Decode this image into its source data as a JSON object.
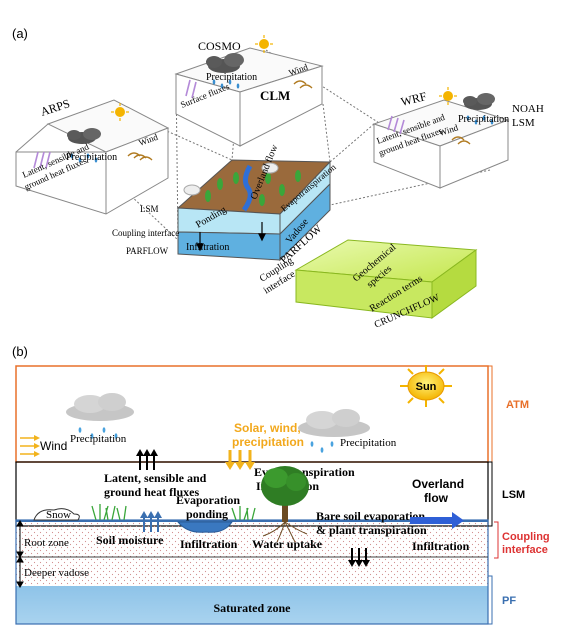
{
  "panel_a": {
    "label": "(a)",
    "arps": {
      "title": "ARPS",
      "precip": "Precipitation",
      "wind": "Wind",
      "fluxes": [
        "Latent, sensible and",
        "ground heat fluxes"
      ]
    },
    "cosmo": {
      "title": "COSMO",
      "precip": "Precipitation",
      "wind": "Wind",
      "fluxes": "Surface fluxes",
      "clm": "CLM"
    },
    "wrf": {
      "title": "WRF",
      "precip": "Precipitation",
      "wind": "Wind",
      "fluxes": [
        "Latent, sensible and",
        "ground heat fluxes"
      ],
      "noah": [
        "NOAH",
        "LSM"
      ]
    },
    "parflow_block": {
      "lsm": "LSM",
      "coupling": "Coupling interface",
      "parflow_left": "PARFLOW",
      "overland": "Overland flow",
      "evap": "Evapotranspiration",
      "ponding": "Ponding",
      "infiltration": "Infiltration",
      "vadose": "Vadose",
      "parflow_side": "PARFLOW"
    },
    "crunch": {
      "coupling": [
        "Coupling",
        "interface"
      ],
      "geochem": [
        "Geochemical",
        "species"
      ],
      "reaction": "Reaction terms",
      "name": "CRUNCHFLOW"
    }
  },
  "panel_b": {
    "label": "(b)",
    "sun": "Sun",
    "wind": "Wind",
    "precip_left": "Precipitation",
    "precip_right": "Precipitation",
    "solar": [
      "Solar, wind,",
      "precipitation"
    ],
    "fluxes": [
      "Latent, sensible and",
      "ground heat fluxes"
    ],
    "evapotranspiration": "Evapotranspiration",
    "interception": "Interception",
    "evaporation_ponding": [
      "Evaporation",
      "ponding"
    ],
    "snow": "Snow",
    "bare_soil": [
      "Bare soil evaporation",
      "& plant transpiration"
    ],
    "overland": [
      "Overland",
      "flow"
    ],
    "root_zone": "Root zone",
    "soil_moisture": "Soil moisture",
    "infiltration_left": "Infiltration",
    "water_uptake": "Water uptake",
    "infiltration_right": "Infiltration",
    "deeper_vadose": "Deeper vadose",
    "saturated": "Saturated zone",
    "side": {
      "atm": "ATM",
      "lsm": "LSM",
      "coupling": [
        "Coupling",
        "interface"
      ],
      "pf": "PF"
    }
  },
  "colors": {
    "atm": "#e8702a",
    "pf": "#3a6fb0",
    "water": "#8fc3e6",
    "soil": "#9a6a3c",
    "crunch": "#d6f07a"
  }
}
